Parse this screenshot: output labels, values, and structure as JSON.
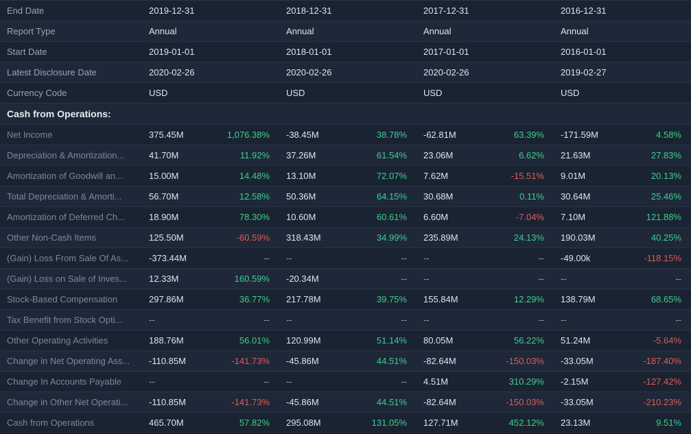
{
  "colors": {
    "positive": "#3dcf8e",
    "negative": "#e05a5a",
    "neutral": "#9aa4b0"
  },
  "header_rows": [
    {
      "label": "End Date",
      "vals": [
        "2019-12-31",
        "2018-12-31",
        "2017-12-31",
        "2016-12-31"
      ]
    },
    {
      "label": "Report Type",
      "vals": [
        "Annual",
        "Annual",
        "Annual",
        "Annual"
      ]
    },
    {
      "label": "Start Date",
      "vals": [
        "2019-01-01",
        "2018-01-01",
        "2017-01-01",
        "2016-01-01"
      ]
    },
    {
      "label": "Latest Disclosure Date",
      "vals": [
        "2020-02-26",
        "2020-02-26",
        "2020-02-26",
        "2019-02-27"
      ]
    },
    {
      "label": "Currency Code",
      "vals": [
        "USD",
        "USD",
        "USD",
        "USD"
      ]
    }
  ],
  "section_title": "Cash from Operations:",
  "metric_rows": [
    {
      "label": "Net Income",
      "cells": [
        [
          "375.45M",
          "1,076.38%",
          "pos"
        ],
        [
          "-38.45M",
          "38.78%",
          "pos"
        ],
        [
          "-62.81M",
          "63.39%",
          "pos"
        ],
        [
          "-171.59M",
          "4.58%",
          "pos"
        ]
      ]
    },
    {
      "label": "Depreciation & Amortization...",
      "cells": [
        [
          "41.70M",
          "11.92%",
          "pos"
        ],
        [
          "37.26M",
          "61.54%",
          "pos"
        ],
        [
          "23.06M",
          "6.62%",
          "pos"
        ],
        [
          "21.63M",
          "27.83%",
          "pos"
        ]
      ]
    },
    {
      "label": "Amortization of Goodwill an...",
      "cells": [
        [
          "15.00M",
          "14.48%",
          "pos"
        ],
        [
          "13.10M",
          "72.07%",
          "pos"
        ],
        [
          "7.62M",
          "-15.51%",
          "neg"
        ],
        [
          "9.01M",
          "20.13%",
          "pos"
        ]
      ]
    },
    {
      "label": "Total Depreciation & Amorti...",
      "cells": [
        [
          "56.70M",
          "12.58%",
          "pos"
        ],
        [
          "50.36M",
          "64.15%",
          "pos"
        ],
        [
          "30.68M",
          "0.11%",
          "pos"
        ],
        [
          "30.64M",
          "25.46%",
          "pos"
        ]
      ]
    },
    {
      "label": "Amortization of Deferred Ch...",
      "cells": [
        [
          "18.90M",
          "78.30%",
          "pos"
        ],
        [
          "10.60M",
          "60.61%",
          "pos"
        ],
        [
          "6.60M",
          "-7.04%",
          "neg"
        ],
        [
          "7.10M",
          "121.88%",
          "pos"
        ]
      ]
    },
    {
      "label": "Other Non-Cash Items",
      "cells": [
        [
          "125.50M",
          "-60.59%",
          "neg"
        ],
        [
          "318.43M",
          "34.99%",
          "pos"
        ],
        [
          "235.89M",
          "24.13%",
          "pos"
        ],
        [
          "190.03M",
          "40.25%",
          "pos"
        ]
      ]
    },
    {
      "label": "(Gain) Loss From Sale Of As...",
      "cells": [
        [
          "-373.44M",
          "--",
          "neu"
        ],
        [
          "--",
          "--",
          "neu"
        ],
        [
          "--",
          "--",
          "neu"
        ],
        [
          "-49.00k",
          "-118.15%",
          "neg"
        ]
      ]
    },
    {
      "label": "(Gain) Loss on Sale of Inves...",
      "cells": [
        [
          "12.33M",
          "160.59%",
          "pos"
        ],
        [
          "-20.34M",
          "--",
          "neu"
        ],
        [
          "--",
          "--",
          "neu"
        ],
        [
          "--",
          "--",
          "neu"
        ]
      ]
    },
    {
      "label": "Stock-Based Compensation",
      "cells": [
        [
          "297.86M",
          "36.77%",
          "pos"
        ],
        [
          "217.78M",
          "39.75%",
          "pos"
        ],
        [
          "155.84M",
          "12.29%",
          "pos"
        ],
        [
          "138.79M",
          "68.65%",
          "pos"
        ]
      ]
    },
    {
      "label": "Tax Benefit from Stock Opti...",
      "cells": [
        [
          "--",
          "--",
          "neu"
        ],
        [
          "--",
          "--",
          "neu"
        ],
        [
          "--",
          "--",
          "neu"
        ],
        [
          "--",
          "--",
          "neu"
        ]
      ]
    },
    {
      "label": "Other Operating Activities",
      "cells": [
        [
          "188.76M",
          "56.01%",
          "pos"
        ],
        [
          "120.99M",
          "51.14%",
          "pos"
        ],
        [
          "80.05M",
          "56.22%",
          "pos"
        ],
        [
          "51.24M",
          "-5.64%",
          "neg"
        ]
      ]
    },
    {
      "label": "Change in Net Operating Ass...",
      "cells": [
        [
          "-110.85M",
          "-141.73%",
          "neg"
        ],
        [
          "-45.86M",
          "44.51%",
          "pos"
        ],
        [
          "-82.64M",
          "-150.03%",
          "neg"
        ],
        [
          "-33.05M",
          "-187.40%",
          "neg"
        ]
      ]
    },
    {
      "label": "Change In Accounts Payable",
      "cells": [
        [
          "--",
          "--",
          "neu"
        ],
        [
          "--",
          "--",
          "neu"
        ],
        [
          "4.51M",
          "310.29%",
          "pos"
        ],
        [
          "-2.15M",
          "-127.42%",
          "neg"
        ]
      ]
    },
    {
      "label": "Change in Other Net Operati...",
      "cells": [
        [
          "-110.85M",
          "-141.73%",
          "neg"
        ],
        [
          "-45.86M",
          "44.51%",
          "pos"
        ],
        [
          "-82.64M",
          "-150.03%",
          "neg"
        ],
        [
          "-33.05M",
          "-210.23%",
          "neg"
        ]
      ]
    },
    {
      "label": "Cash from Operations",
      "cells": [
        [
          "465.70M",
          "57.82%",
          "pos"
        ],
        [
          "295.08M",
          "131.05%",
          "pos"
        ],
        [
          "127.71M",
          "452.12%",
          "pos"
        ],
        [
          "23.13M",
          "9.51%",
          "pos"
        ]
      ]
    }
  ]
}
